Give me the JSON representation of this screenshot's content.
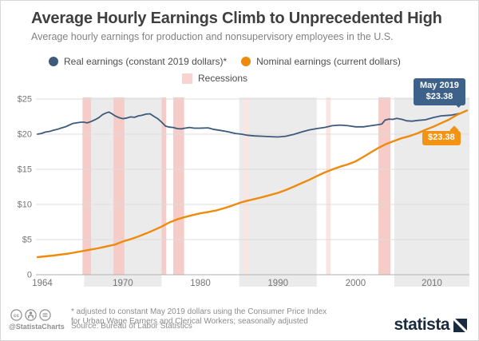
{
  "header": {
    "title": "Average Hourly Earnings Climb to Unprecedented High",
    "subtitle": "Average hourly earnings for production and nonsupervisory employees in the U.S."
  },
  "legend": {
    "real_label": "Real earnings (constant 2019 dollars)*",
    "nominal_label": "Nominal earnings (current dollars)",
    "recessions_label": "Recessions"
  },
  "colors": {
    "real_line": "#3d5a7b",
    "nominal_line": "#ee8a0c",
    "badge_blue": "#3e6189",
    "badge_orange": "#f39313",
    "recession_band": "#f5ccc8",
    "recession_band_faint": "#fae5e2",
    "decade_band_gray": "#ebebeb",
    "gridline": "#dcdcdc",
    "axis": "#b0b0b0",
    "tick_text": "#757575",
    "legend_recession_swatch": "#f7d4d0"
  },
  "annotations": {
    "real_badge": {
      "line1": "May 2019",
      "line2": "$23.38"
    },
    "nominal_badge": {
      "label": "$23.38"
    }
  },
  "icons": {
    "license": [
      "cc-icon",
      "attribution-icon",
      "no-derivatives-icon"
    ],
    "logo_mark": "statista-square-icon"
  },
  "footer": {
    "footnote_line1": "* adjusted to constant May 2019 dollars using the Consumer Price Index",
    "footnote_line2": "for Urban Wage Earners and Clerical Workers; seasonally adjusted",
    "source": "Source: Bureau of Labor Statistics",
    "handle": "@StatistaCharts",
    "logo_text": "statista"
  },
  "chart_data": {
    "type": "line",
    "title": "Average Hourly Earnings Climb to Unprecedented High",
    "xlabel": "",
    "ylabel": "",
    "x_domain": [
      1964,
      2019.37
    ],
    "ylim": [
      0,
      25
    ],
    "grid": "horizontal",
    "legend_position": "top",
    "y_ticks": [
      {
        "v": 25,
        "label": "$25"
      },
      {
        "v": 20,
        "label": "$20"
      },
      {
        "v": 15,
        "label": "$15"
      },
      {
        "v": 10,
        "label": "$10"
      },
      {
        "v": 5,
        "label": "$5"
      },
      {
        "v": 0,
        "label": "0"
      }
    ],
    "x_ticks": [
      {
        "year": 1964,
        "label": "1964"
      },
      {
        "year": 1970,
        "label": "1970"
      },
      {
        "year": 1980,
        "label": "1980"
      },
      {
        "year": 1990,
        "label": "1990"
      },
      {
        "year": 2000,
        "label": "2000"
      },
      {
        "year": 2010,
        "label": "2010"
      }
    ],
    "decade_bands": [
      [
        1970,
        1980
      ],
      [
        1990,
        2000
      ],
      [
        2010,
        2019.9
      ]
    ],
    "recessions": [
      {
        "from": 1969.8,
        "to": 1970.9
      },
      {
        "from": 1973.8,
        "to": 1975.2
      },
      {
        "from": 1980.0,
        "to": 1980.6
      },
      {
        "from": 1981.5,
        "to": 1982.9
      },
      {
        "from": 1990.6,
        "to": 1991.2,
        "faint": true
      },
      {
        "from": 2001.2,
        "to": 2001.8,
        "faint": true
      },
      {
        "from": 2007.95,
        "to": 2009.5
      }
    ],
    "series": [
      {
        "name": "Real earnings (constant 2019 dollars)",
        "end_label": "May 2019 $23.38",
        "points": [
          [
            1964,
            20.0
          ],
          [
            1964.5,
            20.1
          ],
          [
            1965,
            20.3
          ],
          [
            1965.6,
            20.4
          ],
          [
            1966,
            20.55
          ],
          [
            1966.6,
            20.7
          ],
          [
            1967,
            20.85
          ],
          [
            1967.6,
            21.05
          ],
          [
            1968,
            21.25
          ],
          [
            1968.5,
            21.5
          ],
          [
            1969,
            21.6
          ],
          [
            1969.6,
            21.7
          ],
          [
            1970,
            21.7
          ],
          [
            1970.4,
            21.6
          ],
          [
            1970.9,
            21.8
          ],
          [
            1971.4,
            22.05
          ],
          [
            1971.9,
            22.35
          ],
          [
            1972.4,
            22.8
          ],
          [
            1972.9,
            23.05
          ],
          [
            1973.2,
            23.15
          ],
          [
            1973.6,
            22.9
          ],
          [
            1974,
            22.6
          ],
          [
            1974.5,
            22.35
          ],
          [
            1975,
            22.2
          ],
          [
            1975.5,
            22.3
          ],
          [
            1976,
            22.45
          ],
          [
            1976.5,
            22.4
          ],
          [
            1977,
            22.6
          ],
          [
            1977.5,
            22.7
          ],
          [
            1978,
            22.85
          ],
          [
            1978.5,
            22.9
          ],
          [
            1979,
            22.55
          ],
          [
            1979.5,
            22.2
          ],
          [
            1980,
            21.7
          ],
          [
            1980.5,
            21.15
          ],
          [
            1981,
            21.0
          ],
          [
            1981.5,
            20.95
          ],
          [
            1982,
            20.8
          ],
          [
            1982.5,
            20.75
          ],
          [
            1983,
            20.85
          ],
          [
            1983.6,
            20.95
          ],
          [
            1984.2,
            20.85
          ],
          [
            1985,
            20.85
          ],
          [
            1986,
            20.9
          ],
          [
            1986.6,
            20.7
          ],
          [
            1987.5,
            20.55
          ],
          [
            1988.5,
            20.35
          ],
          [
            1989.5,
            20.1
          ],
          [
            1990.3,
            20.0
          ],
          [
            1991,
            19.85
          ],
          [
            1992,
            19.75
          ],
          [
            1993,
            19.7
          ],
          [
            1994,
            19.65
          ],
          [
            1995,
            19.6
          ],
          [
            1996,
            19.7
          ],
          [
            1997,
            19.95
          ],
          [
            1998,
            20.3
          ],
          [
            1999,
            20.6
          ],
          [
            2000,
            20.8
          ],
          [
            2001,
            20.95
          ],
          [
            2002,
            21.2
          ],
          [
            2003,
            21.3
          ],
          [
            2004,
            21.2
          ],
          [
            2005,
            21.05
          ],
          [
            2006,
            21.05
          ],
          [
            2007,
            21.2
          ],
          [
            2007.9,
            21.35
          ],
          [
            2008.4,
            21.45
          ],
          [
            2008.8,
            22.0
          ],
          [
            2009.3,
            22.15
          ],
          [
            2009.8,
            22.1
          ],
          [
            2010.3,
            22.25
          ],
          [
            2011,
            22.1
          ],
          [
            2011.6,
            21.9
          ],
          [
            2012.3,
            21.85
          ],
          [
            2013,
            21.95
          ],
          [
            2014,
            22.05
          ],
          [
            2015,
            22.35
          ],
          [
            2016,
            22.6
          ],
          [
            2016.6,
            22.65
          ],
          [
            2017.3,
            22.7
          ],
          [
            2018,
            22.85
          ],
          [
            2018.6,
            23.0
          ],
          [
            2019,
            23.2
          ],
          [
            2019.37,
            23.38
          ]
        ]
      },
      {
        "name": "Nominal earnings (current dollars)",
        "end_label": "$23.38",
        "points": [
          [
            1964,
            2.5
          ],
          [
            1966,
            2.73
          ],
          [
            1968,
            3.01
          ],
          [
            1970,
            3.4
          ],
          [
            1972,
            3.81
          ],
          [
            1974,
            4.3
          ],
          [
            1975,
            4.73
          ],
          [
            1976,
            5.06
          ],
          [
            1977,
            5.44
          ],
          [
            1978,
            5.88
          ],
          [
            1979,
            6.34
          ],
          [
            1980,
            6.85
          ],
          [
            1981,
            7.44
          ],
          [
            1982,
            7.87
          ],
          [
            1983,
            8.2
          ],
          [
            1984,
            8.49
          ],
          [
            1985,
            8.74
          ],
          [
            1986,
            8.93
          ],
          [
            1987,
            9.14
          ],
          [
            1988,
            9.44
          ],
          [
            1989,
            9.8
          ],
          [
            1990,
            10.2
          ],
          [
            1991,
            10.52
          ],
          [
            1992,
            10.77
          ],
          [
            1993,
            11.05
          ],
          [
            1994,
            11.34
          ],
          [
            1995,
            11.65
          ],
          [
            1996,
            12.04
          ],
          [
            1997,
            12.51
          ],
          [
            1998,
            13.01
          ],
          [
            1999,
            13.49
          ],
          [
            2000,
            14.02
          ],
          [
            2001,
            14.54
          ],
          [
            2002,
            14.97
          ],
          [
            2003,
            15.37
          ],
          [
            2004,
            15.69
          ],
          [
            2005,
            16.13
          ],
          [
            2006,
            16.76
          ],
          [
            2007,
            17.43
          ],
          [
            2008,
            18.08
          ],
          [
            2009,
            18.62
          ],
          [
            2010,
            19.05
          ],
          [
            2011,
            19.44
          ],
          [
            2012,
            19.74
          ],
          [
            2013,
            20.13
          ],
          [
            2014,
            20.61
          ],
          [
            2015,
            21.04
          ],
          [
            2016,
            21.56
          ],
          [
            2017,
            22.05
          ],
          [
            2018,
            22.71
          ],
          [
            2019.37,
            23.38
          ]
        ]
      }
    ]
  }
}
